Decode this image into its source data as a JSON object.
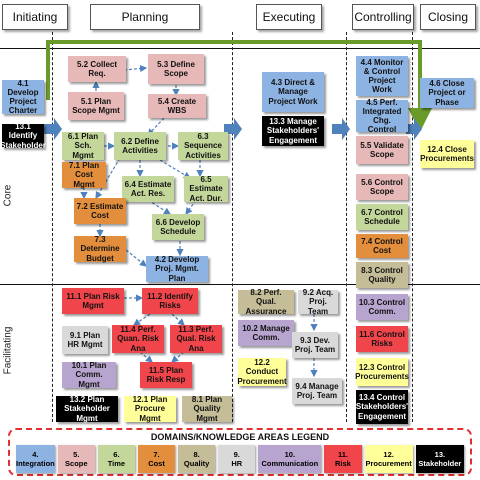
{
  "phases": [
    "Initiating",
    "Planning",
    "Executing",
    "Controlling",
    "Closing"
  ],
  "groups": [
    "Core",
    "Facilitating"
  ],
  "processes": {
    "p4_1": "4.1 Develop Project Charter",
    "p13_1": "13.1 Identify Stakeholder",
    "p5_2": "5.2 Collect Req.",
    "p5_3": "5.3 Define Scope",
    "p5_1": "5.1 Plan Scope Mgmt",
    "p5_4": "5.4 Create WBS",
    "p6_1": "6.1 Plan Sch. Mgmt",
    "p6_2": "6.2 Define Activities",
    "p6_3": "6.3 Sequence Activities",
    "p7_1": "7.1 Plan Cost Mgmt",
    "p6_4": "6.4 Estimate Act. Res.",
    "p6_5": "6.5 Estimate Act. Dur.",
    "p7_2": "7.2 Estimate Cost",
    "p6_6": "6.6 Develop Schedule",
    "p7_3": "7.3 Determine Budget",
    "p4_2": "4.2 Develop Proj. Mgmt. Plan",
    "p11_1": "11.1 Plan Risk Mgmt",
    "p11_2": "11.2 Identify Risks",
    "p9_1": "9.1 Plan HR Mgmt",
    "p11_4": "11.4 Perf. Quan. Risk Ana",
    "p11_3": "11.3 Perf. Qual. Risk Ana",
    "p10_1": "10.1 Plan Comm. Mgmt",
    "p11_5": "11.5 Plan Risk Resp",
    "p13_2": "13.2 Plan Stakeholder Mgmt",
    "p12_1": "12.1 Plan Procure Mgmt",
    "p8_1": "8.1 Plan Quality Mgmt",
    "p4_3": "4.3 Direct & Manage Project Work",
    "p13_3": "13.3 Manage Stakeholders' Engagement",
    "p8_2": "8.2 Perf. Qual. Assurance",
    "p9_2": "9.2 Acq. Proj. Team",
    "p10_2": "10.2 Manage Comm.",
    "p9_3": "9.3 Dev. Proj. Team",
    "p12_2": "12.2 Conduct Procurement",
    "p9_4": "9.4 Manage Proj. Team",
    "p4_4": "4.4 Monitor & Control Project Work",
    "p4_5": "4.5 Perf. Integrated Chg. Control",
    "p5_5": "5.5 Validate Scope",
    "p5_6": "5.6 Control Scope",
    "p6_7": "6.7 Control Schedule",
    "p7_4": "7.4 Control Cost",
    "p8_3": "8.3 Control Quality",
    "p10_3": "10.3 Control Comm.",
    "p11_6": "11.6 Control Risks",
    "p12_3": "12.3 Control Procurements",
    "p13_4": "13.4 Control Stakeholders' Engagement",
    "p4_6": "4.6 Close Project or Phase",
    "p12_4": "12.4 Close Procurements"
  },
  "legend": {
    "title": "DOMAINS/KNOWLEDGE AREAS LEGEND",
    "items": [
      {
        "num": "4.",
        "name": "Integration"
      },
      {
        "num": "5.",
        "name": "Scope"
      },
      {
        "num": "6.",
        "name": "Time"
      },
      {
        "num": "7.",
        "name": "Cost"
      },
      {
        "num": "8.",
        "name": "Quality"
      },
      {
        "num": "9.",
        "name": "HR"
      },
      {
        "num": "10.",
        "name": "Communication"
      },
      {
        "num": "11.",
        "name": "Risk"
      },
      {
        "num": "12.",
        "name": "Procurement"
      },
      {
        "num": "13.",
        "name": "Stakeholder"
      }
    ]
  },
  "colors": {
    "integration": "#8db3e2",
    "scope": "#e6b8b7",
    "time": "#c4d79b",
    "cost": "#e28e3c",
    "quality": "#c4bd97",
    "hr": "#d9d9d9",
    "communication": "#b7a5cf",
    "risk": "#f0454a",
    "procurement": "#ffff99",
    "stakeholder": "#000000",
    "feedback_loop": "#6a9a2a",
    "phase_arrow": "#4f81bd",
    "flow_arrow": "#4f81bd"
  }
}
